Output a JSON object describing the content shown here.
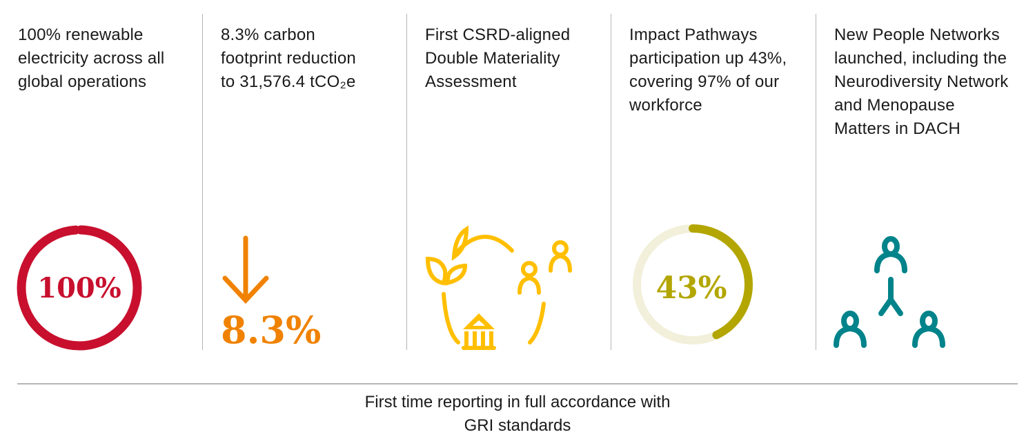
{
  "highlights": [
    {
      "text": "100% renewable\nelectricity across all\nglobal operations",
      "figure": "100%",
      "icon": "progress-ring-icon",
      "progress": 100,
      "color": "#C8102E"
    },
    {
      "text": "8.3% carbon\nfootprint reduction\nto 31,576.4 tCO₂e",
      "figure": "8.3%",
      "icon": "arrow-down-icon",
      "color": "#F08200"
    },
    {
      "text": "First CSRD-aligned\nDouble Materiality\nAssessment",
      "icon": "materiality-cycle-icon",
      "color": "#FFBF00"
    },
    {
      "text": "Impact Pathways\nparticipation up 43%,\ncovering 97% of our\nworkforce",
      "figure": "43%",
      "icon": "progress-ring-icon",
      "progress": 43,
      "color": "#B3A600",
      "track_color": "#F2EFDA"
    },
    {
      "text": "New People Networks\nlaunched, including the\nNeurodiversity Network\nand Menopause\nMatters in DACH",
      "icon": "people-network-icon",
      "color": "#00838A"
    }
  ],
  "footer": "First time reporting in full accordance with\nGRI standards"
}
